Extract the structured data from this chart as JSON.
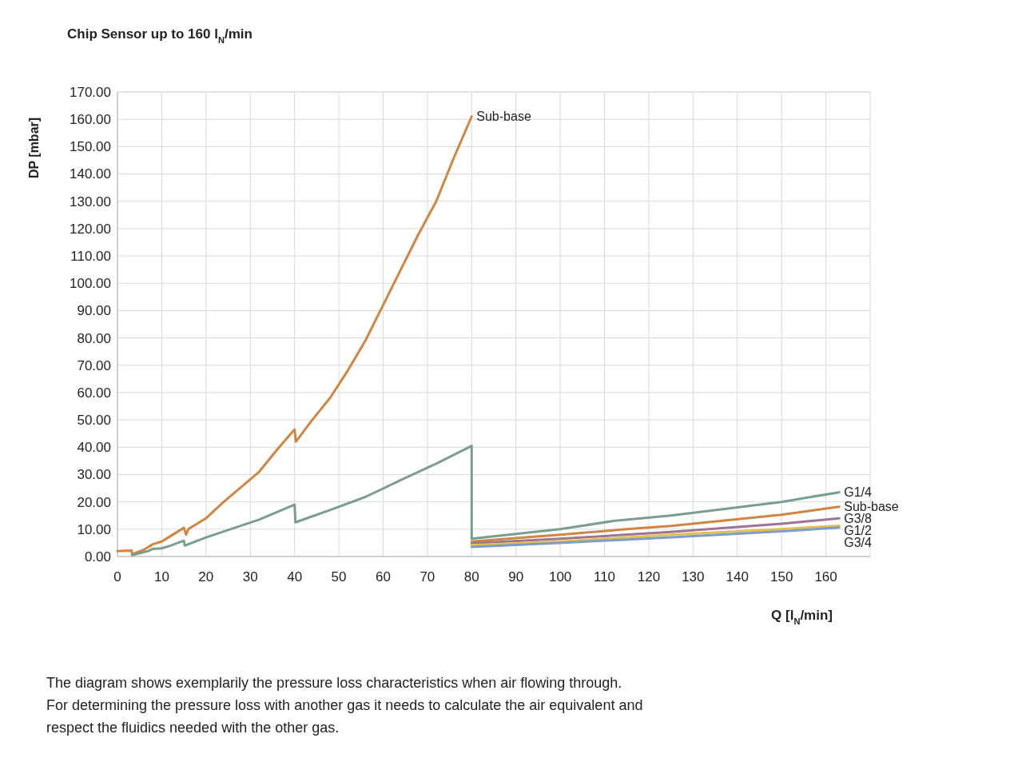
{
  "chart_data": {
    "type": "line",
    "title": "Chip Sensor up to 160 l$_{N}$/min",
    "xlabel": "Q [l$_{N}$/min]",
    "ylabel": "DP [mbar]",
    "xlim": [
      0,
      170
    ],
    "xticks": [
      0,
      10,
      20,
      30,
      40,
      50,
      60,
      70,
      80,
      90,
      100,
      110,
      120,
      130,
      140,
      150,
      160
    ],
    "ylim": [
      0,
      170
    ],
    "yticks": [
      {
        "value": 0,
        "label": "0.00"
      },
      {
        "value": 10,
        "label": "10.00"
      },
      {
        "value": 20,
        "label": "20.00"
      },
      {
        "value": 30,
        "label": "30.00"
      },
      {
        "value": 40,
        "label": "40.00"
      },
      {
        "value": 50,
        "label": "50.00"
      },
      {
        "value": 60,
        "label": "60.00"
      },
      {
        "value": 70,
        "label": "70.00"
      },
      {
        "value": 80,
        "label": "80.00"
      },
      {
        "value": 90,
        "label": "90.00"
      },
      {
        "value": 100,
        "label": "100.00"
      },
      {
        "value": 110,
        "label": "110.00"
      },
      {
        "value": 120,
        "label": "120.00"
      },
      {
        "value": 130,
        "label": "130.00"
      },
      {
        "value": 140,
        "label": "140.00"
      },
      {
        "value": 150,
        "label": "150.00"
      },
      {
        "value": 160,
        "label": "160.00"
      },
      {
        "value": 170,
        "label": "170.00"
      }
    ],
    "grid": true,
    "marker": "none",
    "line_style": "solid",
    "series": [
      {
        "name": "Sub-base",
        "color": "#d08540",
        "x": [
          0,
          3.2,
          3.3,
          6,
          8,
          10,
          12,
          15,
          15.5,
          16,
          20,
          24,
          28,
          32,
          36,
          40,
          40.3,
          44,
          48,
          52,
          56,
          60,
          64,
          68,
          72,
          76,
          80
        ],
        "values": [
          2,
          2.2,
          0.8,
          2.5,
          4.5,
          5.5,
          7.5,
          10.5,
          8,
          10,
          14,
          20,
          25.5,
          31,
          39,
          46.5,
          42,
          50,
          58,
          68,
          79,
          92,
          105,
          118,
          130,
          146,
          161
        ]
      },
      {
        "name": "G1/4",
        "color": "#7a9e8e",
        "x": [
          3.3,
          7,
          8,
          10,
          12,
          15,
          15.2,
          20,
          32,
          40,
          40.2,
          48,
          56,
          64,
          72,
          80,
          80,
          100,
          112,
          125,
          150,
          163
        ],
        "values": [
          0.5,
          2,
          2.8,
          3,
          4,
          5.8,
          4,
          7,
          13.5,
          19,
          12.5,
          17,
          21.8,
          28,
          34,
          40.5,
          6.5,
          10,
          13,
          15,
          20,
          23.5
        ]
      },
      {
        "name": "Sub-base",
        "color": "#d08540",
        "x": [
          80,
          100,
          115,
          125,
          150,
          163
        ],
        "values": [
          5.5,
          8,
          10,
          11.2,
          15.3,
          18.2
        ]
      },
      {
        "name": "G3/8",
        "color": "#9e7397",
        "x": [
          80,
          100,
          125,
          150,
          163
        ],
        "values": [
          4.8,
          6.5,
          9,
          12,
          14
        ]
      },
      {
        "name": "G1/2",
        "color": "#e2c14b",
        "x": [
          80,
          100,
          125,
          150,
          163
        ],
        "values": [
          4.2,
          5.5,
          8,
          10,
          11.3
        ]
      },
      {
        "name": "G3/4",
        "color": "#7b9ccc",
        "x": [
          80,
          100,
          125,
          150,
          163
        ],
        "values": [
          3.5,
          5,
          7,
          9.2,
          10.6
        ]
      }
    ],
    "annotations": [
      "The diagram shows exemplarily the pressure loss characteristics when air flowing through.",
      "For determining the pressure loss with another gas it needs to calculate the air equivalent and",
      "respect the fluidics needed with the other gas."
    ]
  }
}
